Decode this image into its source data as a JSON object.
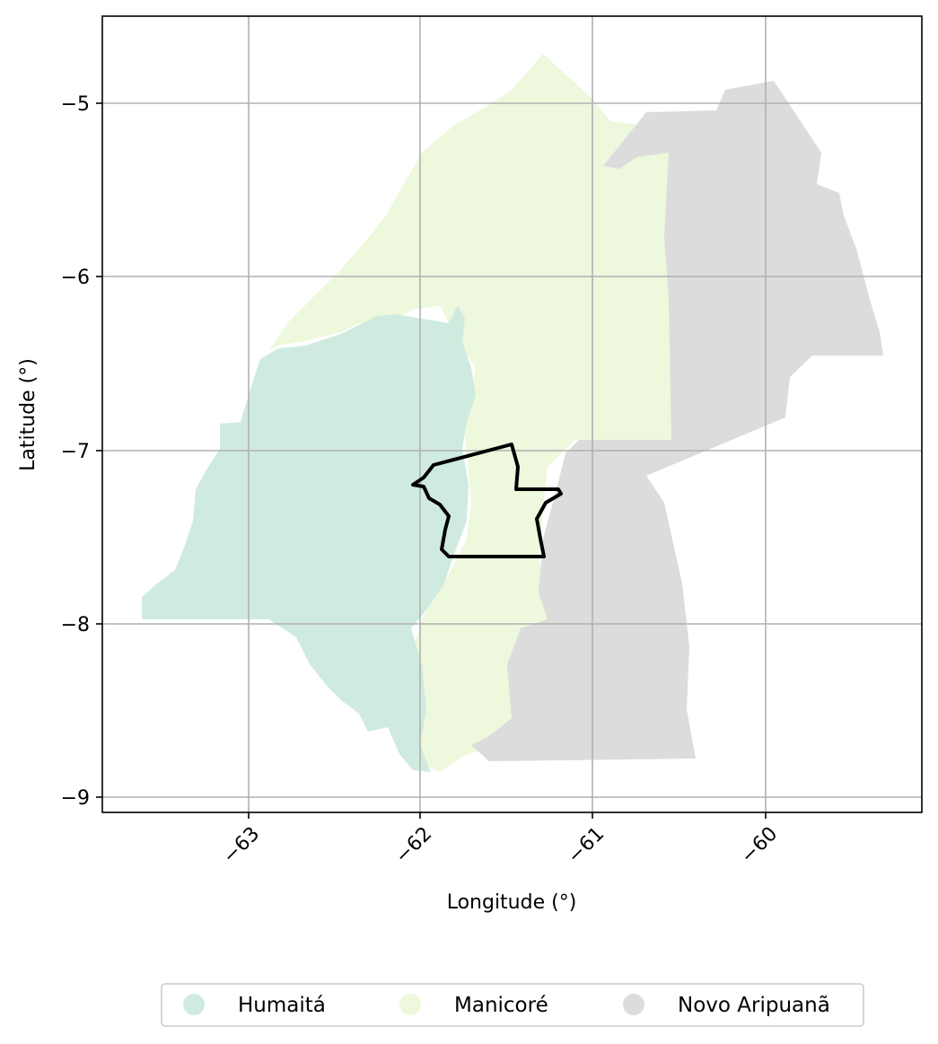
{
  "chart_data": {
    "type": "map",
    "xlabel": "Longitude (°)",
    "ylabel": "Latitude (°)",
    "xlim": [
      -63.85,
      -59.12
    ],
    "ylim": [
      -9.09,
      -4.5
    ],
    "grid": true,
    "xticks": [
      {
        "value": -63,
        "label": "−63"
      },
      {
        "value": -62,
        "label": "−62"
      },
      {
        "value": -61,
        "label": "−61"
      },
      {
        "value": -60,
        "label": "−60"
      }
    ],
    "yticks": [
      {
        "value": -5,
        "label": "−5"
      },
      {
        "value": -6,
        "label": "−6"
      },
      {
        "value": -7,
        "label": "−7"
      },
      {
        "value": -8,
        "label": "−8"
      },
      {
        "value": -9,
        "label": "−9"
      }
    ],
    "regions": [
      {
        "name": "Humaitá",
        "color": "#cfebdf"
      },
      {
        "name": "Manicoré",
        "color": "#edf8dc"
      },
      {
        "name": "Novo Aripuanã",
        "color": "#dcdcdc"
      }
    ],
    "outline": {
      "color": "#000000",
      "description_visible": false
    },
    "legend": {
      "placement": "bottom-center",
      "entries": [
        "Humaitá",
        "Manicoré",
        "Novo Aripuanã"
      ]
    }
  }
}
